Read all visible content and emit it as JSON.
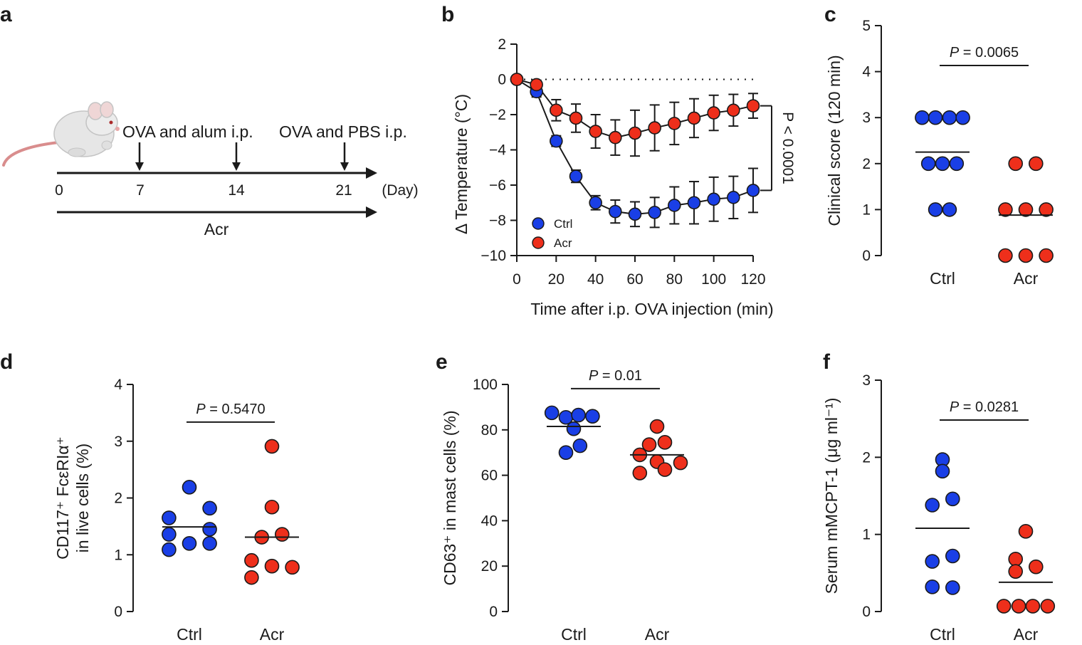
{
  "panels": {
    "a": {
      "label": "a",
      "injection1": "OVA and alum i.p.",
      "injection2": "OVA and PBS i.p.",
      "day_ticks": [
        "0",
        "7",
        "14",
        "21"
      ],
      "day_unit": "(Day)",
      "treatment": "Acr",
      "mouse_icon": "mouse-illustration"
    }
  },
  "colors": {
    "ctrl": "#1a3fe6",
    "acr": "#ee2f1b"
  },
  "chart_data": [
    {
      "panel": "b",
      "type": "line",
      "xlabel": "Time after i.p. OVA injection (min)",
      "ylabel": "Δ Temperature (°C)",
      "x": [
        0,
        10,
        20,
        30,
        40,
        50,
        60,
        70,
        80,
        90,
        100,
        110,
        120
      ],
      "xticks": [
        0,
        20,
        40,
        60,
        80,
        100,
        120
      ],
      "yticks": [
        2,
        0,
        -2,
        -4,
        -6,
        -8,
        -10
      ],
      "xlim": [
        0,
        120
      ],
      "ylim": [
        -10,
        2
      ],
      "reference_line": 0,
      "legend_position": "bottom-left",
      "series": [
        {
          "name": "Ctrl",
          "values": [
            0,
            -0.7,
            -3.5,
            -5.5,
            -7.0,
            -7.5,
            -7.65,
            -7.55,
            -7.15,
            -7.0,
            -6.8,
            -6.7,
            -6.3
          ],
          "errors": [
            0,
            0.3,
            0.3,
            0.35,
            0.4,
            0.65,
            0.7,
            0.85,
            1.05,
            1.2,
            1.25,
            1.2,
            1.25
          ]
        },
        {
          "name": "Acr",
          "values": [
            0,
            -0.3,
            -1.75,
            -2.2,
            -2.95,
            -3.3,
            -3.05,
            -2.75,
            -2.5,
            -2.2,
            -1.9,
            -1.75,
            -1.5
          ],
          "errors": [
            0,
            0.25,
            0.6,
            0.8,
            0.95,
            1.0,
            1.3,
            1.3,
            1.2,
            1.1,
            1.0,
            0.9,
            0.7
          ]
        }
      ],
      "annotation": "P < 0.0001"
    },
    {
      "panel": "c",
      "type": "scatter",
      "ylabel": "Clinical score (120 min)",
      "categories": [
        "Ctrl",
        "Acr"
      ],
      "yticks": [
        0,
        1,
        2,
        3,
        4,
        5
      ],
      "ylim": [
        0,
        5
      ],
      "series": [
        {
          "name": "Ctrl",
          "values": [
            3,
            3,
            3,
            3,
            2,
            2,
            2,
            1,
            1
          ],
          "offsets": [
            -0.26,
            -0.09,
            0.09,
            0.26,
            -0.18,
            0,
            0.18,
            -0.09,
            0.09
          ]
        },
        {
          "name": "Acr",
          "values": [
            2,
            2,
            1,
            1,
            1,
            0,
            0,
            0
          ],
          "offsets": [
            -0.13,
            0.13,
            -0.26,
            0,
            0.26,
            -0.26,
            0,
            0.26
          ]
        }
      ],
      "medians": [
        2.25,
        0.88
      ],
      "p_value": "0.0065"
    },
    {
      "panel": "d",
      "type": "scatter",
      "ylabel_line1": "CD117⁺ FcεRIα⁺",
      "ylabel_line2": "in live cells (%)",
      "categories": [
        "Ctrl",
        "Acr"
      ],
      "yticks": [
        0,
        1,
        2,
        3,
        4
      ],
      "ylim": [
        0,
        4
      ],
      "series": [
        {
          "name": "Ctrl",
          "values": [
            2.19,
            1.65,
            1.36,
            1.09,
            1.2,
            1.82,
            1.45,
            1.2
          ],
          "offsets": [
            0,
            -0.26,
            -0.26,
            -0.26,
            0,
            0.26,
            0.26,
            0.26
          ]
        },
        {
          "name": "Acr",
          "values": [
            2.91,
            1.84,
            1.31,
            1.36,
            0.9,
            0.6,
            0.8,
            0.78
          ],
          "offsets": [
            0,
            0,
            -0.13,
            0.13,
            -0.26,
            -0.26,
            0,
            0.26
          ]
        }
      ],
      "medians": [
        1.49,
        1.31
      ],
      "p_value": "0.5470"
    },
    {
      "panel": "e",
      "type": "scatter",
      "ylabel": "CD63⁺ in mast cells (%)",
      "categories": [
        "Ctrl",
        "Acr"
      ],
      "yticks": [
        0,
        20,
        40,
        60,
        80,
        100
      ],
      "ylim": [
        0,
        100
      ],
      "series": [
        {
          "name": "Ctrl",
          "values": [
            87.5,
            85.5,
            86.5,
            86.0,
            80.5,
            73.0,
            70.0
          ],
          "offsets": [
            -0.28,
            -0.1,
            0.06,
            0.24,
            0,
            0.08,
            -0.1
          ]
        },
        {
          "name": "Acr",
          "values": [
            81.5,
            74.5,
            73.5,
            69.0,
            66.0,
            65.5,
            62.5,
            61.0
          ],
          "offsets": [
            0,
            0.1,
            -0.1,
            -0.22,
            0,
            0.3,
            0.1,
            -0.22
          ]
        }
      ],
      "medians": [
        81.5,
        69.0
      ],
      "p_value": "0.01"
    },
    {
      "panel": "f",
      "type": "scatter",
      "ylabel": "Serum mMCPT-1 (μg ml⁻¹)",
      "categories": [
        "Ctrl",
        "Acr"
      ],
      "yticks": [
        0,
        1,
        2,
        3
      ],
      "ylim": [
        0,
        3
      ],
      "series": [
        {
          "name": "Ctrl",
          "values": [
            1.97,
            1.82,
            1.46,
            1.38,
            0.72,
            0.65,
            0.32,
            0.31
          ],
          "offsets": [
            0,
            0,
            0.13,
            -0.13,
            0.13,
            -0.13,
            -0.13,
            0.13
          ]
        },
        {
          "name": "Acr",
          "values": [
            1.04,
            0.68,
            0.58,
            0.52,
            0.07,
            0.07,
            0.07,
            0.07
          ],
          "offsets": [
            0,
            -0.13,
            0.13,
            -0.13,
            -0.28,
            -0.09,
            0.09,
            0.28
          ]
        }
      ],
      "medians": [
        1.08,
        0.38
      ],
      "p_value": "0.0281"
    }
  ]
}
